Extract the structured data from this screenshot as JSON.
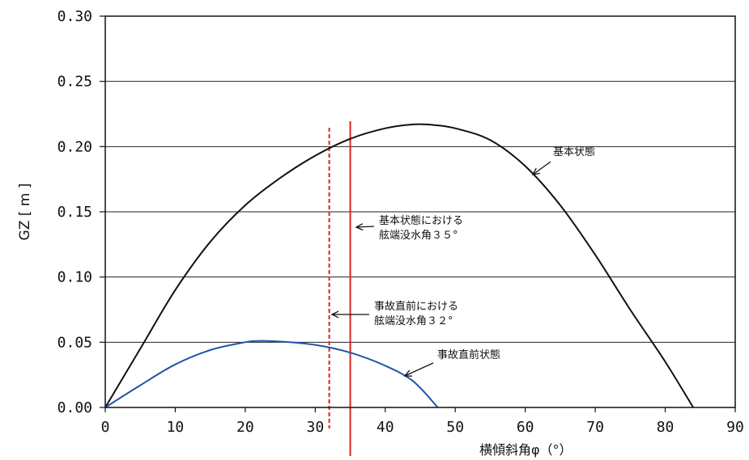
{
  "chart_data": {
    "type": "line",
    "title": "",
    "xlabel": "横傾斜角φ（°）",
    "ylabel": "GZ [ m ]",
    "xlim": [
      0,
      90
    ],
    "ylim": [
      0.0,
      0.3
    ],
    "x_ticks": [
      "0",
      "10",
      "20",
      "30",
      "40",
      "50",
      "60",
      "70",
      "80",
      "90"
    ],
    "y_ticks": [
      "0.00",
      "0.05",
      "0.10",
      "0.15",
      "0.20",
      "0.25",
      "0.30"
    ],
    "grid": "horizontal",
    "series": [
      {
        "name": "基本状態",
        "color": "#111111",
        "points": [
          [
            0,
            0.0
          ],
          [
            5,
            0.045
          ],
          [
            10,
            0.09
          ],
          [
            15,
            0.127
          ],
          [
            20,
            0.155
          ],
          [
            25,
            0.176
          ],
          [
            30,
            0.193
          ],
          [
            35,
            0.206
          ],
          [
            40,
            0.214
          ],
          [
            44,
            0.217
          ],
          [
            47,
            0.2165
          ],
          [
            50,
            0.214
          ],
          [
            55,
            0.205
          ],
          [
            60,
            0.185
          ],
          [
            65,
            0.155
          ],
          [
            70,
            0.117
          ],
          [
            75,
            0.075
          ],
          [
            80,
            0.035
          ],
          [
            84,
            0.0
          ]
        ]
      },
      {
        "name": "事故直前状態",
        "color": "#2255aa",
        "points": [
          [
            0,
            0.0
          ],
          [
            5,
            0.017
          ],
          [
            10,
            0.033
          ],
          [
            15,
            0.044
          ],
          [
            20,
            0.05
          ],
          [
            22,
            0.051
          ],
          [
            25,
            0.0505
          ],
          [
            30,
            0.048
          ],
          [
            35,
            0.042
          ],
          [
            40,
            0.032
          ],
          [
            44,
            0.02
          ],
          [
            47.5,
            0.0
          ]
        ]
      }
    ],
    "vertical_lines": [
      {
        "name": "事故直前における舷端没水角",
        "x": 32,
        "color": "#dd2222",
        "style": "dashed"
      },
      {
        "name": "基本状態における舷端没水角",
        "x": 35,
        "color": "#dd2222",
        "style": "solid"
      }
    ],
    "annotations": [
      {
        "lines": [
          "基本状態"
        ]
      },
      {
        "lines": [
          "基本状態における",
          "舷端没水角３５°"
        ]
      },
      {
        "lines": [
          "事故直前における",
          "舷端没水角３２°"
        ]
      },
      {
        "lines": [
          "事故直前状態"
        ]
      }
    ]
  }
}
